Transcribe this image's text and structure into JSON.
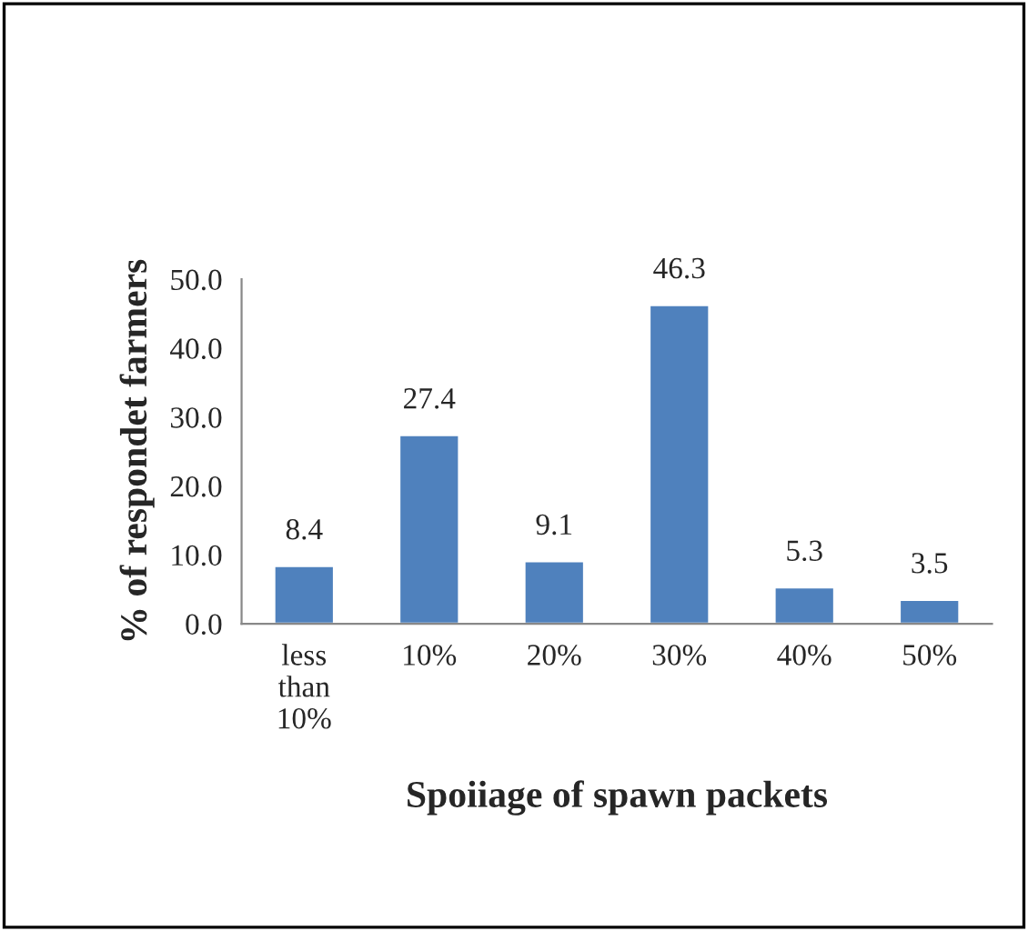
{
  "chart_data": {
    "type": "bar",
    "xlabel": "Spoiiage of spawn packets",
    "ylabel": "% of respondet farmers",
    "categories": [
      "less\nthan\n10%",
      "10%",
      "20%",
      "30%",
      "40%",
      "50%"
    ],
    "values": [
      8.4,
      27.4,
      9.1,
      46.3,
      5.3,
      3.5
    ],
    "color": "#4f81bd",
    "data_labels": true,
    "grid": false,
    "ylim": [
      0,
      50
    ],
    "yticks": [
      {
        "value": 0,
        "label": "0.0"
      },
      {
        "value": 10,
        "label": "10.0"
      },
      {
        "value": 20,
        "label": "20.0"
      },
      {
        "value": 30,
        "label": "30.0"
      },
      {
        "value": 40,
        "label": "40.0"
      },
      {
        "value": 50,
        "label": "50.0"
      }
    ]
  }
}
